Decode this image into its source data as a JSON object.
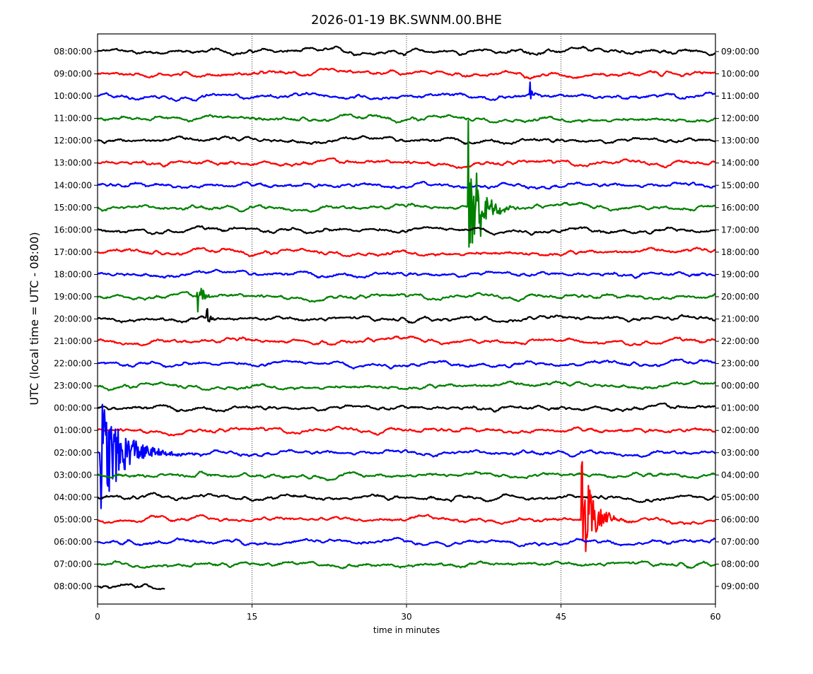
{
  "chart_data": {
    "type": "line",
    "title": "2026-01-19 BK.SWNM.00.BHE",
    "xlabel": "time in minutes",
    "ylabel": "UTC (local time = UTC - 08:00)",
    "xlim": [
      0,
      60
    ],
    "xticks": [
      "0",
      "15",
      "30",
      "45",
      "60"
    ],
    "xtick_values": [
      0,
      15,
      30,
      45,
      60
    ],
    "vertical_gridlines_at": [
      15,
      30,
      45
    ],
    "colors": [
      "#000000",
      "#ff0000",
      "#0000ff",
      "#008000"
    ],
    "left_labels": [
      "08:00:00",
      "09:00:00",
      "10:00:00",
      "11:00:00",
      "12:00:00",
      "13:00:00",
      "14:00:00",
      "15:00:00",
      "16:00:00",
      "17:00:00",
      "18:00:00",
      "19:00:00",
      "20:00:00",
      "21:00:00",
      "22:00:00",
      "23:00:00",
      "00:00:00",
      "01:00:00",
      "02:00:00",
      "03:00:00",
      "04:00:00",
      "05:00:00",
      "06:00:00",
      "07:00:00",
      "08:00:00"
    ],
    "right_labels": [
      "09:00:00",
      "10:00:00",
      "11:00:00",
      "12:00:00",
      "13:00:00",
      "14:00:00",
      "15:00:00",
      "16:00:00",
      "17:00:00",
      "18:00:00",
      "19:00:00",
      "20:00:00",
      "21:00:00",
      "22:00:00",
      "23:00:00",
      "00:00:00",
      "01:00:00",
      "02:00:00",
      "03:00:00",
      "04:00:00",
      "05:00:00",
      "06:00:00",
      "07:00:00",
      "08:00:00",
      "09:00:00"
    ],
    "last_row_end_minute": 6.5,
    "events": [
      {
        "row": 2,
        "minute": 42.0,
        "amplitude_rows": 0.6,
        "duration_min": 0.4
      },
      {
        "row": 7,
        "minute": 36.0,
        "amplitude_rows": 4.7,
        "duration_min": 1.8
      },
      {
        "row": 11,
        "minute": 9.7,
        "amplitude_rows": 1.0,
        "duration_min": 0.8
      },
      {
        "row": 12,
        "minute": 10.6,
        "amplitude_rows": 0.5,
        "duration_min": 0.6
      },
      {
        "row": 18,
        "minute": 0.3,
        "amplitude_rows": 2.7,
        "duration_min": 4.0
      },
      {
        "row": 21,
        "minute": 47.0,
        "amplitude_rows": 3.0,
        "duration_min": 2.0
      }
    ]
  }
}
